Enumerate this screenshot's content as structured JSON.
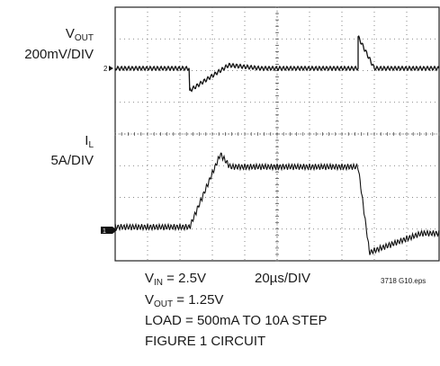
{
  "chart_data": {
    "type": "line",
    "channels": [
      {
        "name_main": "V",
        "name_sub": "OUT",
        "scale": "200mV/DIV",
        "marker": "2",
        "trace": {
          "pre_step": {
            "level_div": 0,
            "ripple_div": 0.05
          },
          "load_step_up": {
            "dip_div": -0.7,
            "recover_to_div": 0.1
          },
          "load_step_down": {
            "overshoot_div": 1.0,
            "recover_div": 0
          }
        }
      },
      {
        "name_main": "I",
        "name_sub": "L",
        "scale": "5A/DIV",
        "marker": "1",
        "trace": {
          "low_level_A": 0.5,
          "high_level_A": 10,
          "peak_A": 12,
          "ripple_A": 1.0
        }
      }
    ],
    "annotations": {
      "vin_main": "V",
      "vin_sub": "IN",
      "vin_value": " = 2.5V",
      "vout_main": "V",
      "vout_sub": "OUT",
      "vout_value": " = 1.25V",
      "load": "LOAD = 500mA TO 10A STEP",
      "figure": "FIGURE 1 CIRCUIT",
      "timebase": "20µs/DIV",
      "code": "3718 G10.eps"
    },
    "grid": true,
    "divisions": {
      "x": 10,
      "y": 8
    },
    "step_up_time_div": 2.3,
    "step_down_time_div": 7.5
  }
}
